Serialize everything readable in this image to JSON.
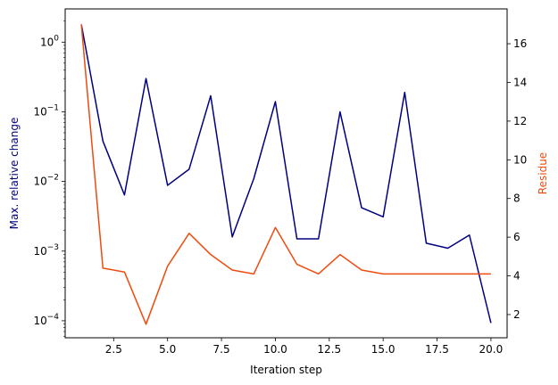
{
  "chart_data": {
    "type": "line",
    "xlabel": "Iteration step",
    "ylabel_left": "Max. relative change",
    "ylabel_right": "Residue",
    "xlim": [
      0.25,
      20.75
    ],
    "xticks": [
      2.5,
      5.0,
      7.5,
      10.0,
      12.5,
      15.0,
      17.5,
      20.0
    ],
    "xtick_labels": [
      "2.5",
      "5.0",
      "7.5",
      "10.0",
      "12.5",
      "15.0",
      "17.5",
      "20.0"
    ],
    "left_axis": {
      "scale": "log",
      "ylim": [
        5.7e-05,
        3.0
      ],
      "ticks": [
        0.0001,
        0.001,
        0.01,
        0.1,
        1
      ],
      "tick_labels": [
        {
          "base": "10",
          "exp": "−4"
        },
        {
          "base": "10",
          "exp": "−3"
        },
        {
          "base": "10",
          "exp": "−2"
        },
        {
          "base": "10",
          "exp": "−1"
        },
        {
          "base": "10",
          "exp": "0"
        }
      ]
    },
    "right_axis": {
      "scale": "linear",
      "ylim": [
        0.8,
        17.8
      ],
      "ticks": [
        2,
        4,
        6,
        8,
        10,
        12,
        14,
        16
      ],
      "tick_labels": [
        "2",
        "4",
        "6",
        "8",
        "10",
        "12",
        "14",
        "16"
      ]
    },
    "series": [
      {
        "axis": "left",
        "color": "#00007f",
        "x": [
          1,
          2,
          3,
          4,
          5,
          6,
          7,
          8,
          9,
          10,
          11,
          12,
          13,
          14,
          15,
          16,
          17,
          18,
          19,
          20
        ],
        "y": [
          1.8,
          0.038,
          0.0064,
          0.3,
          0.0088,
          0.015,
          0.17,
          0.0016,
          0.011,
          0.14,
          0.0015,
          0.0015,
          0.1,
          0.0042,
          0.0031,
          0.19,
          0.0013,
          0.0011,
          0.0017,
          9.3e-05
        ]
      },
      {
        "axis": "right",
        "color": "#ef4b10",
        "x": [
          1,
          2,
          3,
          4,
          5,
          6,
          7,
          8,
          9,
          10,
          11,
          12,
          13,
          14,
          15,
          16,
          17,
          18,
          19,
          20
        ],
        "y": [
          17.0,
          4.4,
          4.2,
          1.5,
          4.5,
          6.2,
          5.1,
          4.3,
          4.1,
          6.5,
          4.6,
          4.1,
          5.1,
          4.3,
          4.1,
          4.1,
          4.1,
          4.1,
          4.1,
          4.1
        ]
      }
    ]
  }
}
